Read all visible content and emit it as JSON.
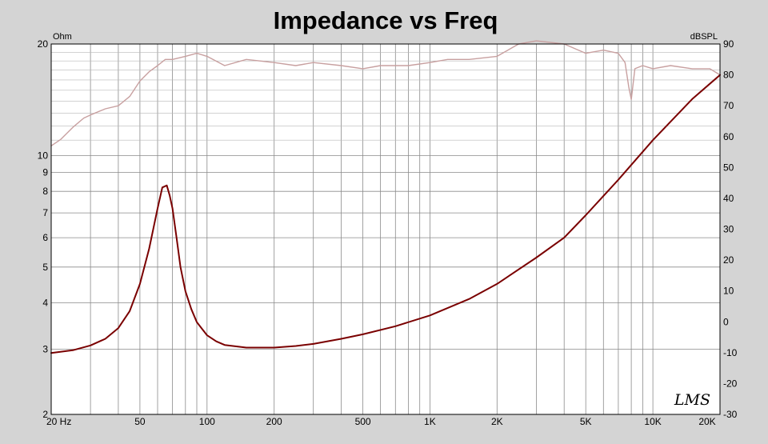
{
  "chart_data": {
    "type": "line",
    "title": "Impedance vs Freq",
    "left_axis_unit": "Ohm",
    "right_axis_unit": "dBSPL",
    "x_scale": "log",
    "y_left_scale": "log",
    "y_right_scale": "linear",
    "xlim": [
      20,
      20000
    ],
    "ylim_left": [
      2,
      20
    ],
    "ylim_right": [
      -30,
      90
    ],
    "x_ticks": [
      {
        "value": 20,
        "label": "20  Hz"
      },
      {
        "value": 50,
        "label": "50"
      },
      {
        "value": 100,
        "label": "100"
      },
      {
        "value": 200,
        "label": "200"
      },
      {
        "value": 500,
        "label": "500"
      },
      {
        "value": 1000,
        "label": "1K"
      },
      {
        "value": 2000,
        "label": "2K"
      },
      {
        "value": 5000,
        "label": "5K"
      },
      {
        "value": 10000,
        "label": "10K"
      },
      {
        "value": 20000,
        "label": "20K"
      }
    ],
    "y_left_ticks": [
      {
        "value": 2,
        "label": "2"
      },
      {
        "value": 3,
        "label": "3"
      },
      {
        "value": 4,
        "label": "4"
      },
      {
        "value": 5,
        "label": "5"
      },
      {
        "value": 6,
        "label": "6"
      },
      {
        "value": 7,
        "label": "7"
      },
      {
        "value": 8,
        "label": "8"
      },
      {
        "value": 9,
        "label": "9"
      },
      {
        "value": 10,
        "label": "10"
      },
      {
        "value": 20,
        "label": "20"
      }
    ],
    "y_right_ticks": [
      {
        "value": -30,
        "label": "-30"
      },
      {
        "value": -20,
        "label": "-20"
      },
      {
        "value": -10,
        "label": "-10"
      },
      {
        "value": 0,
        "label": "0"
      },
      {
        "value": 10,
        "label": "10"
      },
      {
        "value": 20,
        "label": "20"
      },
      {
        "value": 30,
        "label": "30"
      },
      {
        "value": 40,
        "label": "40"
      },
      {
        "value": 50,
        "label": "50"
      },
      {
        "value": 60,
        "label": "60"
      },
      {
        "value": 70,
        "label": "70"
      },
      {
        "value": 80,
        "label": "80"
      },
      {
        "value": 90,
        "label": "90"
      }
    ],
    "grid": true,
    "watermark": "LMS",
    "series": [
      {
        "axis": "left",
        "color": "#7a0000",
        "x": [
          20,
          25,
          30,
          35,
          40,
          45,
          50,
          55,
          60,
          63,
          66,
          68,
          70,
          73,
          76,
          80,
          85,
          90,
          100,
          110,
          120,
          150,
          200,
          250,
          300,
          400,
          500,
          700,
          1000,
          1500,
          2000,
          3000,
          4000,
          5000,
          7000,
          10000,
          15000,
          20000
        ],
        "values": [
          2.93,
          2.98,
          3.07,
          3.2,
          3.42,
          3.8,
          4.5,
          5.6,
          7.2,
          8.2,
          8.3,
          7.8,
          7.2,
          6.0,
          5.0,
          4.3,
          3.85,
          3.55,
          3.27,
          3.15,
          3.08,
          3.03,
          3.03,
          3.06,
          3.1,
          3.2,
          3.29,
          3.46,
          3.7,
          4.1,
          4.5,
          5.3,
          6.0,
          6.9,
          8.6,
          11.0,
          14.2,
          16.5
        ]
      },
      {
        "axis": "right",
        "color": "#c8a0a0",
        "x": [
          20,
          22,
          25,
          28,
          30,
          35,
          40,
          45,
          50,
          55,
          60,
          65,
          70,
          80,
          90,
          100,
          120,
          150,
          200,
          250,
          300,
          400,
          500,
          600,
          800,
          1000,
          1200,
          1500,
          2000,
          2500,
          3000,
          4000,
          5000,
          6000,
          7000,
          7500,
          7800,
          8000,
          8300,
          9000,
          10000,
          12000,
          15000,
          18000,
          20000
        ],
        "values": [
          57,
          59,
          63,
          66,
          67,
          69,
          70,
          73,
          78,
          81,
          83,
          85,
          85,
          86,
          87,
          86,
          83,
          85,
          84,
          83,
          84,
          83,
          82,
          83,
          83,
          84,
          85,
          85,
          86,
          90,
          91,
          90,
          87,
          88,
          87,
          84,
          76,
          72,
          82,
          83,
          82,
          83,
          82,
          82,
          80
        ]
      }
    ]
  }
}
